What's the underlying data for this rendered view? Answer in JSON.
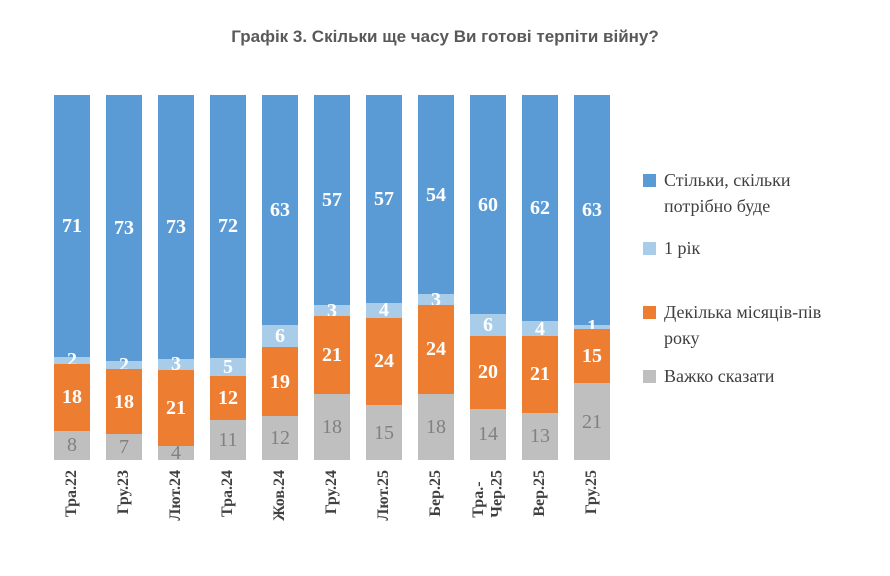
{
  "chart_data": {
    "type": "bar",
    "variant": "stacked-percent-column",
    "title": "Графік 3. Скільки ще часу Ви готові терпіти війну?",
    "categories": [
      "Тра.22",
      "Гру.23",
      "Лют.24",
      "Тра.24",
      "Жов.24",
      "Гру.24",
      "Лют.25",
      "Бер.25",
      "Тра.-\nЧер.25",
      "Вер.25",
      "Гру.25"
    ],
    "series": [
      {
        "name": "Важко сказати",
        "color": "#BFBFBF",
        "label_color": "#818181",
        "label_bold": false,
        "values": [
          8,
          7,
          4,
          11,
          12,
          18,
          15,
          18,
          14,
          13,
          21
        ]
      },
      {
        "name": "Декілька місяців-пів року",
        "color": "#ED7D31",
        "label_color": "#FFFFFF",
        "label_bold": true,
        "values": [
          18,
          18,
          21,
          12,
          19,
          21,
          24,
          24,
          20,
          21,
          15
        ]
      },
      {
        "name": "1 рік",
        "color": "#A9CCE9",
        "label_color": "#FFFFFF",
        "label_bold": true,
        "values": [
          2,
          2,
          3,
          5,
          6,
          3,
          4,
          3,
          6,
          4,
          1
        ]
      },
      {
        "name": "Стільки, скільки потрібно буде",
        "color": "#5B9BD5",
        "label_color": "#FFFFFF",
        "label_bold": true,
        "values": [
          71,
          73,
          73,
          72,
          63,
          57,
          57,
          54,
          60,
          62,
          63
        ]
      }
    ],
    "legend": {
      "position": "right",
      "entries": [
        {
          "label": "Стільки, скільки\nпотрібно буде",
          "color": "#5B9BD5"
        },
        {
          "label": "1 рік",
          "color": "#A9CCE9"
        },
        {
          "label": "Декілька місяців-пів\nроку",
          "color": "#ED7D31"
        },
        {
          "label": "Важко сказати",
          "color": "#BFBFBF"
        }
      ]
    },
    "ylim": [
      0,
      100
    ],
    "grid": false,
    "y_axis_visible": false,
    "x_label_rotation_deg": 90,
    "colors": {
      "title_text": "#595959",
      "axis_text": "#404040",
      "gray_value_text": "#818181",
      "white_value_text": "#FFFFFF"
    }
  }
}
